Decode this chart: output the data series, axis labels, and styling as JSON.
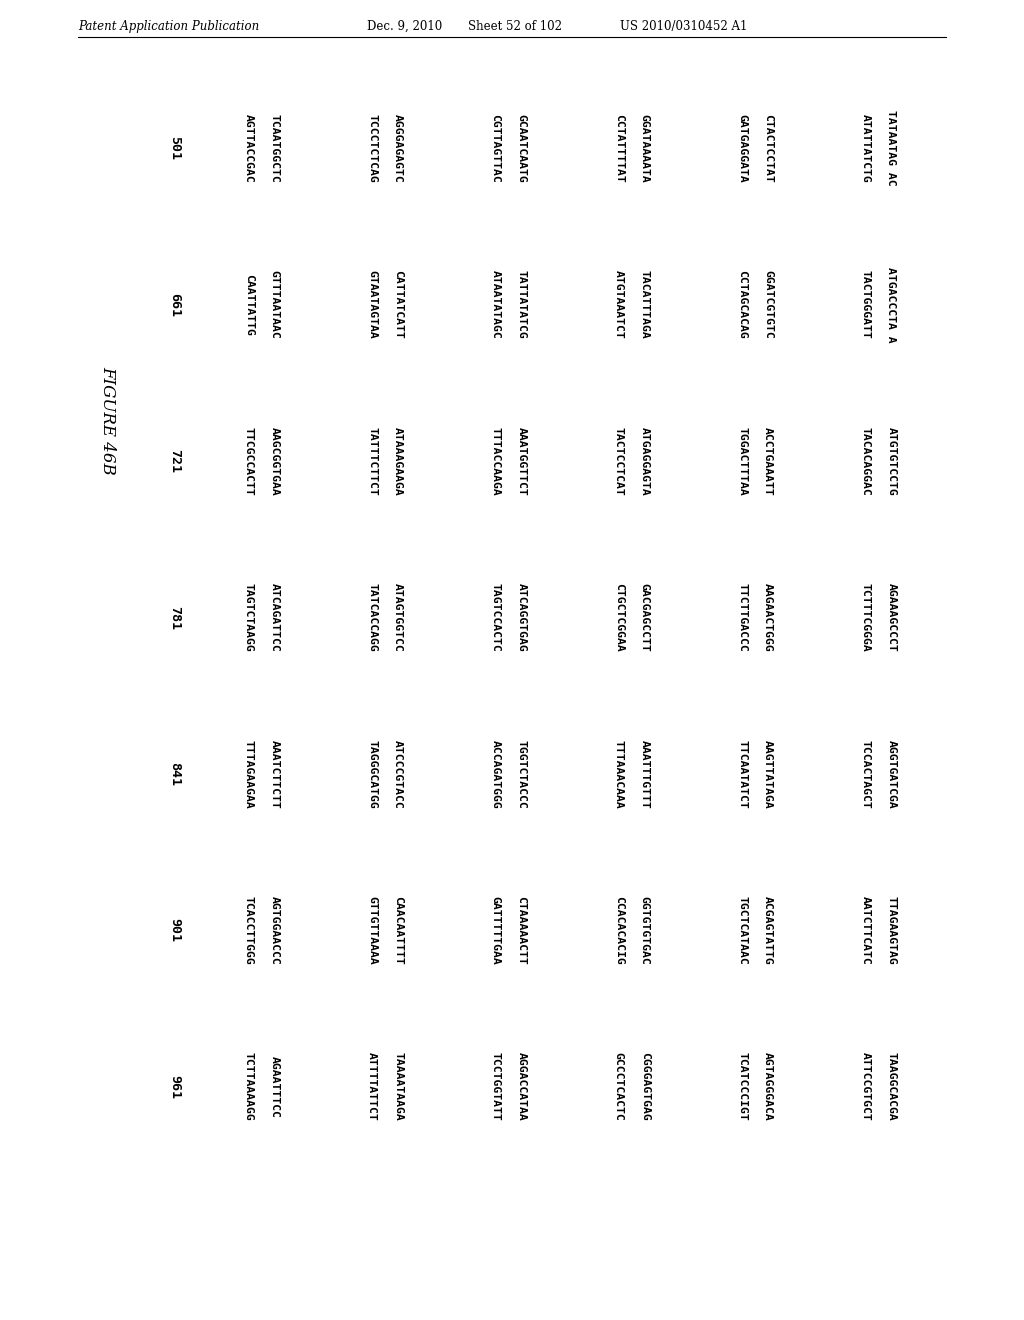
{
  "header_left": "Patent Application Publication",
  "header_mid": "Dec. 9, 2010",
  "header_sheet": "Sheet 52 of 102",
  "header_right": "US 2010/0310452 A1",
  "figure_label": "FIGURE 46B",
  "background_color": "#ffffff",
  "rows": [
    {
      "number": "501",
      "sequences": [
        [
          "AGTTACCGAC",
          "TCAATGGCTC"
        ],
        [
          "TCCCTCTCAG",
          "AGGGAGAGTC"
        ],
        [
          "CGTTAGTTAC",
          "GCAATCAATG"
        ],
        [
          "CCTATTTTAT",
          "GGATAAAATA"
        ],
        [
          "GATGAGGATA",
          "CTACTCCTAT"
        ],
        [
          "ATATTATCTG",
          "TATAATAG AC"
        ]
      ]
    },
    {
      "number": "661",
      "sequences": [
        [
          "CAATTATTG",
          "GTTTAATAAC"
        ],
        [
          "GTAATAGTAA",
          "CATTATCATT"
        ],
        [
          "ATAATATAGC",
          "TATTATATCG"
        ],
        [
          "ATGTAAATCT",
          "TACATTTAGA"
        ],
        [
          "CCTAGCACAG",
          "GGATCGTGTC"
        ],
        [
          "TACTGGGATT",
          "ATGACCCTA A"
        ]
      ]
    },
    {
      "number": "721",
      "sequences": [
        [
          "TTCGCCACTT",
          "AAGCGGTGAA"
        ],
        [
          "TATTTCTTCT",
          "ATAAAGAAGA"
        ],
        [
          "TTTACCAAGA",
          "AAATGGTTCT"
        ],
        [
          "TACTCCTCAT",
          "ATGAGGAGTA"
        ],
        [
          "TGGACTTTAA",
          "ACCTGAAATT"
        ],
        [
          "TACACAGGAC",
          "ATGTGTCCTG"
        ]
      ]
    },
    {
      "number": "781",
      "sequences": [
        [
          "TAGTCTAAGG",
          "ATCAGATTCC"
        ],
        [
          "TATCACCAGG",
          "ATAGTGGTCC"
        ],
        [
          "TAGTCCACTC",
          "ATCAGGTGAG"
        ],
        [
          "CTGCTCGGAA",
          "GACGAGCCTT"
        ],
        [
          "TTCTTGACCC",
          "AAGAACTGGG"
        ],
        [
          "TCTTTCGGGA",
          "AGAAAGCCCT"
        ]
      ]
    },
    {
      "number": "841",
      "sequences": [
        [
          "TTTAGAAGAA",
          "AAATCTTCTT"
        ],
        [
          "TAGGGCATGG",
          "ATCCCGTACC"
        ],
        [
          "ACCAGATGGG",
          "TGGTCTACCC"
        ],
        [
          "TTTAAACAAA",
          "AAATTTGTTT"
        ],
        [
          "TTCAATATCT",
          "AAGTTATAGA"
        ],
        [
          "TCCACTAGCT",
          "AGGTGATCGA"
        ]
      ]
    },
    {
      "number": "901",
      "sequences": [
        [
          "TCACCTTGGG",
          "AGTGGAACCC"
        ],
        [
          "GTTGTTAAAA",
          "CAACAATTTT"
        ],
        [
          "GATTTTTGAA",
          "CTAAAAACTT"
        ],
        [
          "CCACACACIG",
          "GGTGTGTGAC"
        ],
        [
          "TGCTCATAAC",
          "ACGAGTATTG"
        ],
        [
          "AATCTTCATC",
          "TTAGAAGTAG"
        ]
      ]
    },
    {
      "number": "961",
      "sequences": [
        [
          "TCTTAAAAGG",
          "AGAATTTCC"
        ],
        [
          "ATTTTATTCT",
          "TAAAATAAGA"
        ],
        [
          "TCCTGGTATT",
          "AGGACCATAA"
        ],
        [
          "GCCCTCACTC",
          "CGGGAGTGAG"
        ],
        [
          "TCATCCCIGT",
          "AGTAGGGACA"
        ],
        [
          "ATTCCGTGCT",
          "TAAGGCACGA"
        ]
      ]
    }
  ]
}
